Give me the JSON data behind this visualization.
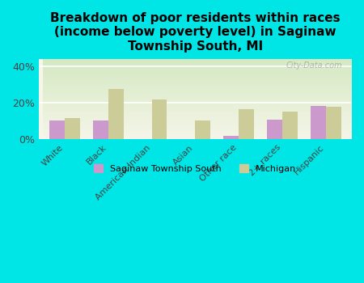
{
  "title": "Breakdown of poor residents within races\n(income below poverty level) in Saginaw\nTownship South, MI",
  "categories": [
    "White",
    "Black",
    "American Indian",
    "Asian",
    "Other race",
    "2+ races",
    "Hispanic"
  ],
  "saginaw_values": [
    10.5,
    10.5,
    0,
    0,
    2.0,
    11.0,
    18.5
  ],
  "michigan_values": [
    11.5,
    27.5,
    22.0,
    10.5,
    16.5,
    15.0,
    18.0
  ],
  "saginaw_color": "#cc99cc",
  "michigan_color": "#cccc99",
  "bg_color": "#00e5e5",
  "plot_bg_top": "#d4e8c2",
  "plot_bg_bottom": "#f5f5e8",
  "title_fontsize": 11,
  "yticks": [
    0,
    20,
    40
  ],
  "ylim": [
    0,
    44
  ],
  "watermark": "City-Data.com"
}
